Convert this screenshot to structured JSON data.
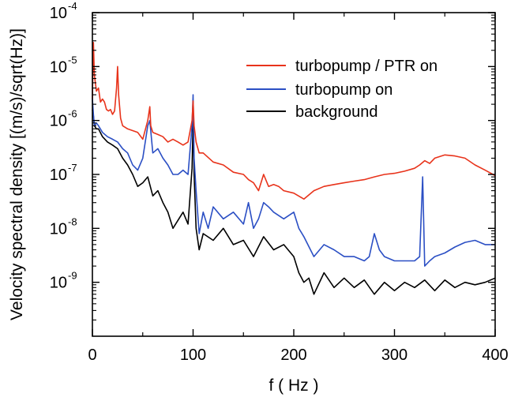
{
  "chart_data": {
    "type": "line",
    "title": "",
    "xlabel": "f ( Hz )",
    "ylabel": "Velocity spectral density [(m/s)/sqrt(Hz)]",
    "xlim": [
      0,
      400
    ],
    "ylim": [
      1e-10,
      0.0001
    ],
    "yscale": "log",
    "x_ticks": [
      {
        "value": 0,
        "label": "0"
      },
      {
        "value": 100,
        "label": "100"
      },
      {
        "value": 200,
        "label": "200"
      },
      {
        "value": 300,
        "label": "300"
      },
      {
        "value": 400,
        "label": "400"
      }
    ],
    "y_ticks": [
      {
        "value": 1e-09,
        "base": "10",
        "exp": "-9"
      },
      {
        "value": 1e-08,
        "base": "10",
        "exp": "-8"
      },
      {
        "value": 1e-07,
        "base": "10",
        "exp": "-7"
      },
      {
        "value": 1e-06,
        "base": "10",
        "exp": "-6"
      },
      {
        "value": 1e-05,
        "base": "10",
        "exp": "-5"
      },
      {
        "value": 0.0001,
        "base": "10",
        "exp": "-4"
      }
    ],
    "grid": false,
    "legend_position": "top-right",
    "series": [
      {
        "name": "turbopump / PTR on",
        "color": "#e8331b",
        "x": [
          0,
          1,
          2,
          4,
          6,
          8,
          10,
          12,
          14,
          16,
          18,
          20,
          22,
          24,
          25,
          26,
          28,
          30,
          35,
          40,
          45,
          50,
          55,
          57,
          58,
          60,
          65,
          70,
          75,
          80,
          85,
          90,
          95,
          99,
          100,
          101,
          103,
          106,
          110,
          120,
          130,
          140,
          150,
          155,
          160,
          165,
          170,
          175,
          180,
          185,
          190,
          200,
          210,
          220,
          230,
          240,
          250,
          260,
          270,
          280,
          290,
          300,
          310,
          320,
          325,
          330,
          335,
          340,
          350,
          360,
          370,
          380,
          390,
          400
        ],
        "y": [
          2.5e-06,
          2.8e-05,
          7e-06,
          3.5e-06,
          4e-06,
          2.2e-06,
          2.5e-06,
          2.2e-06,
          1.6e-06,
          1.5e-06,
          1.6e-06,
          1.3e-06,
          1.5e-06,
          4e-06,
          1e-05,
          3e-06,
          1.1e-06,
          8e-07,
          7e-07,
          6.5e-07,
          6e-07,
          4.5e-07,
          1e-06,
          1.8e-06,
          8e-07,
          6e-07,
          5.5e-07,
          5e-07,
          4e-07,
          4.5e-07,
          4e-07,
          3.5e-07,
          4e-07,
          1e-06,
          2.3e-06,
          8e-07,
          4e-07,
          2.5e-07,
          2.5e-07,
          1.7e-07,
          1.5e-07,
          1.1e-07,
          1e-07,
          8e-08,
          7e-08,
          5e-08,
          1e-07,
          6e-08,
          6.5e-08,
          6e-08,
          5e-08,
          4.5e-08,
          3.5e-08,
          5e-08,
          6e-08,
          6.5e-08,
          7e-08,
          7.5e-08,
          8e-08,
          9e-08,
          1e-07,
          1.05e-07,
          1.15e-07,
          1.3e-07,
          1.5e-07,
          1.8e-07,
          1.6e-07,
          2e-07,
          2.3e-07,
          2.2e-07,
          2e-07,
          1.5e-07,
          1.2e-07,
          9.5e-08
        ]
      },
      {
        "name": "turbopump on",
        "color": "#2b4fc4",
        "x": [
          0,
          1,
          2,
          4,
          6,
          10,
          15,
          20,
          25,
          30,
          35,
          40,
          45,
          50,
          55,
          57,
          60,
          65,
          70,
          75,
          80,
          85,
          90,
          95,
          99,
          100,
          101,
          103,
          106,
          110,
          115,
          120,
          130,
          140,
          150,
          155,
          160,
          165,
          170,
          175,
          180,
          190,
          200,
          205,
          210,
          220,
          230,
          240,
          250,
          260,
          270,
          275,
          280,
          285,
          290,
          300,
          310,
          320,
          325,
          328,
          330,
          335,
          340,
          350,
          360,
          370,
          380,
          390,
          400
        ],
        "y": [
          2.5e-06,
          1.3e-06,
          8e-07,
          9e-07,
          8e-07,
          6e-07,
          5e-07,
          4.5e-07,
          4e-07,
          3e-07,
          2.5e-07,
          1.5e-07,
          1.2e-07,
          2e-07,
          8e-07,
          1e-06,
          2.5e-07,
          3e-07,
          2e-07,
          1.5e-07,
          1e-07,
          1e-07,
          1.2e-07,
          1e-07,
          8e-07,
          3e-06,
          2e-07,
          5e-08,
          8e-09,
          2e-08,
          1e-08,
          2.5e-08,
          1.5e-08,
          2e-08,
          1.2e-08,
          3e-08,
          1e-08,
          1.5e-08,
          3e-08,
          2.5e-08,
          2e-08,
          1.5e-08,
          2e-08,
          1e-08,
          7e-09,
          3e-09,
          5e-09,
          4e-09,
          3e-09,
          3e-09,
          2.5e-09,
          3e-09,
          8e-09,
          4e-09,
          3e-09,
          2.5e-09,
          2.5e-09,
          2.5e-09,
          3e-09,
          9e-08,
          2e-09,
          2.5e-09,
          3e-09,
          3.5e-09,
          4.5e-09,
          5.5e-09,
          6e-09,
          5e-09,
          5e-09
        ]
      },
      {
        "name": "background",
        "color": "#000000",
        "x": [
          0,
          1,
          2,
          4,
          6,
          10,
          15,
          20,
          25,
          30,
          35,
          40,
          45,
          50,
          55,
          60,
          65,
          70,
          75,
          80,
          90,
          95,
          99,
          100,
          101,
          103,
          106,
          110,
          120,
          130,
          140,
          150,
          160,
          170,
          180,
          190,
          200,
          205,
          210,
          215,
          220,
          230,
          240,
          250,
          260,
          270,
          280,
          290,
          300,
          310,
          320,
          330,
          340,
          350,
          360,
          370,
          380,
          390,
          400
        ],
        "y": [
          1.6e-06,
          1.2e-06,
          8e-07,
          7e-07,
          7e-07,
          5e-07,
          4e-07,
          3.5e-07,
          3e-07,
          2e-07,
          1.5e-07,
          1e-07,
          6e-08,
          7e-08,
          9e-08,
          4e-08,
          5e-08,
          3e-08,
          2e-08,
          1e-08,
          2e-08,
          1.2e-08,
          1.3e-07,
          1e-06,
          1e-07,
          1e-08,
          4e-09,
          8e-09,
          6e-09,
          1e-08,
          5e-09,
          6e-09,
          3e-09,
          7e-09,
          4e-09,
          5e-09,
          3e-09,
          1.5e-09,
          1e-09,
          1.2e-09,
          6e-10,
          1.5e-09,
          8e-10,
          1.2e-09,
          8e-10,
          1.1e-09,
          6e-10,
          1e-09,
          7e-10,
          1e-09,
          8e-10,
          1.1e-09,
          7e-10,
          1.1e-09,
          8e-10,
          1e-09,
          9e-10,
          1e-09,
          1.2e-09
        ]
      }
    ]
  }
}
